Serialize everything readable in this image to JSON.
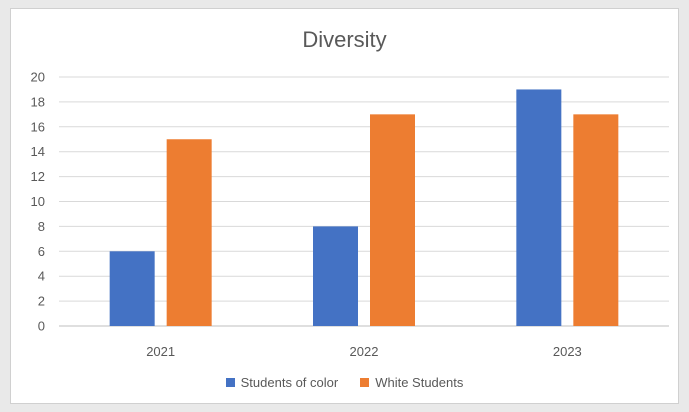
{
  "chart_data": {
    "type": "bar",
    "title": "Diversity",
    "categories": [
      "2021",
      "2022",
      "2023"
    ],
    "series": [
      {
        "name": "Students of color",
        "values": [
          6,
          8,
          19
        ],
        "color": "#4472C4"
      },
      {
        "name": "White Students",
        "values": [
          15,
          17,
          17
        ],
        "color": "#ED7D31"
      }
    ],
    "xlabel": "",
    "ylabel": "",
    "ylim": [
      0,
      20
    ],
    "yticks": [
      0,
      2,
      4,
      6,
      8,
      10,
      12,
      14,
      16,
      18,
      20
    ],
    "grid": true,
    "legend_position": "bottom"
  }
}
